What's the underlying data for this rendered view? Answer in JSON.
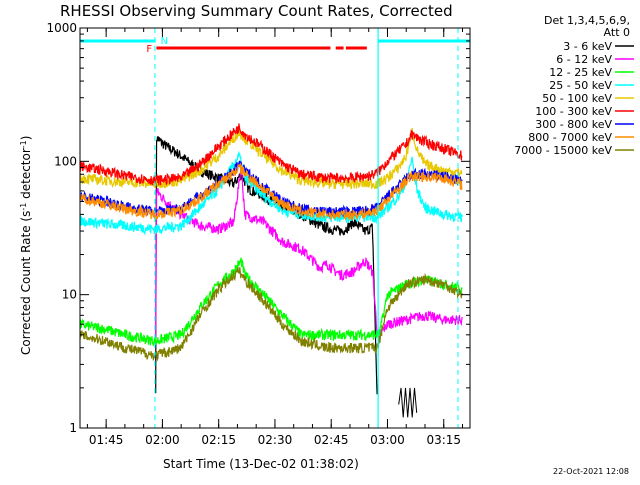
{
  "chart_data": {
    "type": "line",
    "title": "RHESSI Observing Summary Count Rates, Corrected",
    "xlabel": "Start Time (13-Dec-02 01:38:02)",
    "ylabel_parts": {
      "a": "Corrected Count Rate (s",
      "b": "-1",
      "c": " detector",
      "d": "-1",
      "e": ")"
    },
    "footer": "22-Oct-2021 12:08",
    "x_range_min": [
      98.03,
      202.0
    ],
    "y_range": [
      1,
      1000
    ],
    "y_scale": "log",
    "x_ticks": [
      {
        "t": 105,
        "label": "01:45"
      },
      {
        "t": 120,
        "label": "02:00"
      },
      {
        "t": 135,
        "label": "02:15"
      },
      {
        "t": 150,
        "label": "02:30"
      },
      {
        "t": 165,
        "label": "02:45"
      },
      {
        "t": 180,
        "label": "03:00"
      },
      {
        "t": 195,
        "label": "03:15"
      }
    ],
    "y_ticks": [
      {
        "v": 1,
        "label": "1"
      },
      {
        "v": 10,
        "label": "10"
      },
      {
        "v": 100,
        "label": "100"
      },
      {
        "v": 1000,
        "label": "1000"
      }
    ],
    "legend_header": [
      "Det 1,3,4,5,6,9,",
      "Att 0"
    ],
    "annotations": {
      "night_label": "N",
      "flare_label": "F"
    },
    "night_bars": [
      [
        98.03,
        118.2
      ],
      [
        177.5,
        202.0
      ]
    ],
    "flare_bars": [
      [
        118.4,
        164.8
      ],
      [
        166.2,
        168.3
      ],
      [
        168.9,
        174.5
      ]
    ],
    "dashed_lines": [
      118.0,
      198.8
    ],
    "solid_lines": [
      177.5
    ],
    "series": [
      {
        "name": "3 - 6 keV",
        "color": "#000000",
        "points": [
          [
            118.2,
            2
          ],
          [
            118.4,
            150
          ],
          [
            121,
            130
          ],
          [
            125,
            110
          ],
          [
            130,
            85
          ],
          [
            135,
            75
          ],
          [
            139,
            68
          ],
          [
            141,
            80
          ],
          [
            143,
            62
          ],
          [
            147,
            55
          ],
          [
            152,
            45
          ],
          [
            157,
            40
          ],
          [
            162,
            33
          ],
          [
            165,
            31
          ],
          [
            168,
            30
          ],
          [
            171,
            35
          ],
          [
            174,
            30
          ],
          [
            176,
            32
          ],
          [
            177.3,
            1.5
          ]
        ],
        "tail": [
          [
            183,
            1.5
          ],
          [
            183.6,
            2
          ],
          [
            184.2,
            1.2
          ],
          [
            184.8,
            2
          ],
          [
            185.4,
            1.2
          ],
          [
            186,
            2
          ],
          [
            186.6,
            1.2
          ],
          [
            187.2,
            2
          ],
          [
            187.8,
            1.3
          ]
        ]
      },
      {
        "name": "6 - 12 keV",
        "color": "#ff00ff",
        "points": [
          [
            118.2,
            4
          ],
          [
            118.4,
            60
          ],
          [
            121,
            50
          ],
          [
            125,
            40
          ],
          [
            130,
            33
          ],
          [
            135,
            31
          ],
          [
            139,
            35
          ],
          [
            141,
            90
          ],
          [
            142,
            40
          ],
          [
            147,
            35
          ],
          [
            152,
            25
          ],
          [
            157,
            22
          ],
          [
            162,
            16
          ],
          [
            164,
            17
          ],
          [
            166,
            15
          ],
          [
            168,
            14
          ],
          [
            171,
            15
          ],
          [
            174,
            18
          ],
          [
            176,
            15
          ],
          [
            177.3,
            5
          ],
          [
            177.8,
            5
          ],
          [
            180,
            6
          ],
          [
            185,
            6.5
          ],
          [
            190,
            7
          ],
          [
            195,
            6.5
          ],
          [
            200,
            6.5
          ]
        ]
      },
      {
        "name": "12 - 25 keV",
        "color": "#00ff00",
        "points": [
          [
            98.03,
            6
          ],
          [
            105,
            5.5
          ],
          [
            110,
            5
          ],
          [
            118,
            4.5
          ],
          [
            125,
            5
          ],
          [
            130,
            8
          ],
          [
            135,
            12
          ],
          [
            139,
            15
          ],
          [
            141,
            18
          ],
          [
            142,
            14
          ],
          [
            147,
            10
          ],
          [
            152,
            7
          ],
          [
            157,
            5
          ],
          [
            164,
            5
          ],
          [
            170,
            5
          ],
          [
            175,
            5
          ],
          [
            177.3,
            5
          ],
          [
            177.8,
            5
          ],
          [
            180,
            10
          ],
          [
            185,
            12
          ],
          [
            190,
            13
          ],
          [
            195,
            12
          ],
          [
            200,
            11
          ]
        ]
      },
      {
        "name": "25 - 50 keV",
        "color": "#00ffff",
        "points": [
          [
            98.03,
            36
          ],
          [
            105,
            34
          ],
          [
            110,
            33
          ],
          [
            118,
            31
          ],
          [
            125,
            33
          ],
          [
            130,
            45
          ],
          [
            135,
            62
          ],
          [
            139,
            95
          ],
          [
            140.5,
            110
          ],
          [
            142,
            75
          ],
          [
            147,
            55
          ],
          [
            152,
            43
          ],
          [
            157,
            40
          ],
          [
            164,
            38
          ],
          [
            170,
            38
          ],
          [
            175,
            39
          ],
          [
            177.3,
            38
          ],
          [
            180,
            45
          ],
          [
            183,
            55
          ],
          [
            185,
            70
          ],
          [
            186.5,
            105
          ],
          [
            188,
            60
          ],
          [
            190,
            45
          ],
          [
            195,
            40
          ],
          [
            200,
            38
          ]
        ]
      },
      {
        "name": "50 - 100 keV",
        "color": "#e8c800",
        "points": [
          [
            98.03,
            75
          ],
          [
            105,
            72
          ],
          [
            110,
            70
          ],
          [
            118,
            68
          ],
          [
            125,
            72
          ],
          [
            130,
            85
          ],
          [
            135,
            110
          ],
          [
            139,
            150
          ],
          [
            140.5,
            165
          ],
          [
            142,
            150
          ],
          [
            147,
            110
          ],
          [
            152,
            85
          ],
          [
            157,
            72
          ],
          [
            164,
            68
          ],
          [
            170,
            68
          ],
          [
            175,
            68
          ],
          [
            177.3,
            68
          ],
          [
            180,
            75
          ],
          [
            183,
            90
          ],
          [
            185,
            110
          ],
          [
            186.5,
            170
          ],
          [
            188,
            120
          ],
          [
            190,
            95
          ],
          [
            195,
            85
          ],
          [
            200,
            82
          ]
        ]
      },
      {
        "name": "100 - 300 keV",
        "color": "#ff0000",
        "points": [
          [
            98.03,
            92
          ],
          [
            105,
            85
          ],
          [
            110,
            78
          ],
          [
            118,
            72
          ],
          [
            125,
            75
          ],
          [
            130,
            95
          ],
          [
            135,
            130
          ],
          [
            139,
            165
          ],
          [
            140.5,
            180
          ],
          [
            142,
            160
          ],
          [
            147,
            125
          ],
          [
            152,
            95
          ],
          [
            157,
            80
          ],
          [
            164,
            75
          ],
          [
            170,
            75
          ],
          [
            175,
            78
          ],
          [
            177.3,
            82
          ],
          [
            180,
            100
          ],
          [
            183,
            120
          ],
          [
            185,
            135
          ],
          [
            186.5,
            160
          ],
          [
            188,
            150
          ],
          [
            190,
            140
          ],
          [
            195,
            125
          ],
          [
            200,
            110
          ]
        ]
      },
      {
        "name": "300 - 800 keV",
        "color": "#0000ff",
        "points": [
          [
            98.03,
            55
          ],
          [
            105,
            50
          ],
          [
            110,
            46
          ],
          [
            118,
            42
          ],
          [
            125,
            45
          ],
          [
            130,
            55
          ],
          [
            135,
            70
          ],
          [
            139,
            85
          ],
          [
            140.5,
            95
          ],
          [
            142,
            85
          ],
          [
            147,
            65
          ],
          [
            152,
            50
          ],
          [
            157,
            44
          ],
          [
            164,
            42
          ],
          [
            170,
            42
          ],
          [
            175,
            43
          ],
          [
            177.3,
            45
          ],
          [
            180,
            55
          ],
          [
            183,
            65
          ],
          [
            185,
            75
          ],
          [
            186.5,
            80
          ],
          [
            188,
            80
          ],
          [
            190,
            80
          ],
          [
            195,
            78
          ],
          [
            200,
            70
          ]
        ]
      },
      {
        "name": "800 - 7000 keV",
        "color": "#ff8c00",
        "points": [
          [
            98.03,
            53
          ],
          [
            105,
            48
          ],
          [
            110,
            44
          ],
          [
            118,
            40
          ],
          [
            125,
            43
          ],
          [
            130,
            53
          ],
          [
            135,
            68
          ],
          [
            139,
            82
          ],
          [
            140.5,
            90
          ],
          [
            142,
            82
          ],
          [
            147,
            62
          ],
          [
            152,
            48
          ],
          [
            157,
            42
          ],
          [
            164,
            40
          ],
          [
            170,
            40
          ],
          [
            175,
            41
          ],
          [
            177.3,
            43
          ],
          [
            180,
            52
          ],
          [
            183,
            62
          ],
          [
            185,
            72
          ],
          [
            186.5,
            77
          ],
          [
            188,
            77
          ],
          [
            190,
            77
          ],
          [
            195,
            75
          ],
          [
            200,
            67
          ]
        ]
      },
      {
        "name": "7000 - 15000 keV",
        "color": "#808000",
        "points": [
          [
            98.03,
            5
          ],
          [
            105,
            4.5
          ],
          [
            110,
            4
          ],
          [
            118,
            3.5
          ],
          [
            125,
            4
          ],
          [
            130,
            7
          ],
          [
            135,
            11
          ],
          [
            139,
            14
          ],
          [
            140.5,
            15
          ],
          [
            142,
            13
          ],
          [
            147,
            9
          ],
          [
            152,
            6
          ],
          [
            157,
            4.5
          ],
          [
            164,
            4
          ],
          [
            170,
            4
          ],
          [
            175,
            4
          ],
          [
            177.3,
            4
          ],
          [
            180,
            8
          ],
          [
            183,
            10
          ],
          [
            185,
            12
          ],
          [
            190,
            13
          ],
          [
            195,
            12
          ],
          [
            200,
            10
          ]
        ]
      }
    ]
  }
}
